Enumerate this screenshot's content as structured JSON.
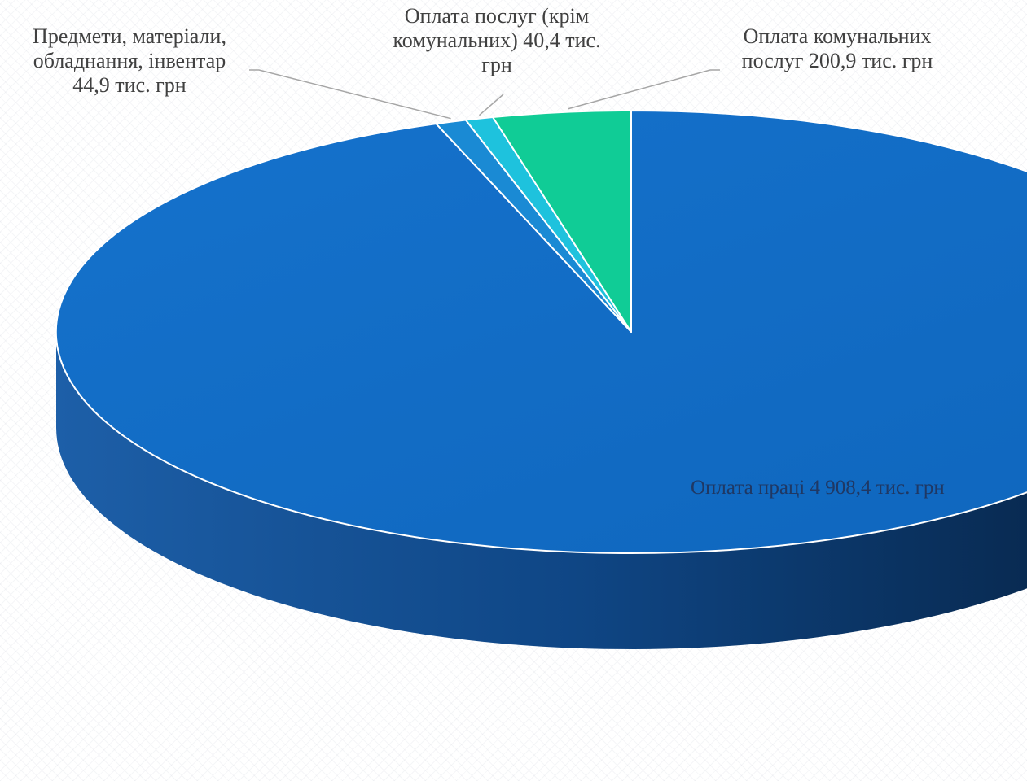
{
  "chart_data": {
    "type": "pie",
    "style": "3d",
    "unit": "тис. грн",
    "slices": [
      {
        "name": "Оплата праці",
        "value": 4908.4,
        "label_lines": [
          "Оплата праці  4 908,4 тис. грн"
        ],
        "color": "#1270c6"
      },
      {
        "name": "Предмети, матеріали, обладнання, інвентар",
        "value": 44.9,
        "label_lines": [
          "Предмети, матеріали,",
          "обладнання, інвентар",
          "44,9 тис. грн"
        ],
        "color": "#1a8ad4"
      },
      {
        "name": "Оплата послуг (крім комунальних)",
        "value": 40.4,
        "label_lines": [
          "Оплата послуг (крім",
          "комунальних) 40,4 тис.",
          "грн"
        ],
        "color": "#1ec2dd"
      },
      {
        "name": "Оплата комунальних послуг",
        "value": 200.9,
        "label_lines": [
          "Оплата комунальних",
          "послуг 200,9 тис. грн"
        ],
        "color": "#10cc96"
      }
    ]
  }
}
